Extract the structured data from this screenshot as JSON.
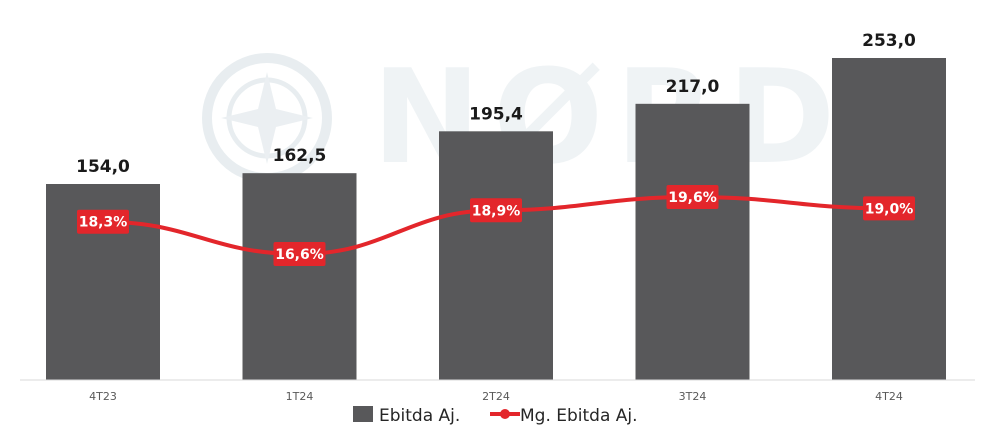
{
  "chart_data": {
    "type": "bar",
    "categories": [
      "4T23",
      "1T24",
      "2T24",
      "3T24",
      "4T24"
    ],
    "series": [
      {
        "name": "Ebitda Aj.",
        "type": "bar",
        "values": [
          154.0,
          162.5,
          195.4,
          217.0,
          253.0
        ],
        "labels": [
          "154,0",
          "162,5",
          "195,4",
          "217,0",
          "253,0"
        ]
      },
      {
        "name": "Mg. Ebitda Aj.",
        "type": "line",
        "values": [
          18.3,
          16.6,
          18.9,
          19.6,
          19.0
        ],
        "labels": [
          "18,3%",
          "16,6%",
          "18,9%",
          "19,6%",
          "19,0%"
        ]
      }
    ],
    "ylim": [
      0,
      270
    ],
    "grid": false,
    "legend": "bottom",
    "colors": {
      "bar": "#58585a",
      "line": "#e3262b",
      "axis": "#d9d9d9"
    }
  },
  "watermark": {
    "text": "NØRD"
  }
}
